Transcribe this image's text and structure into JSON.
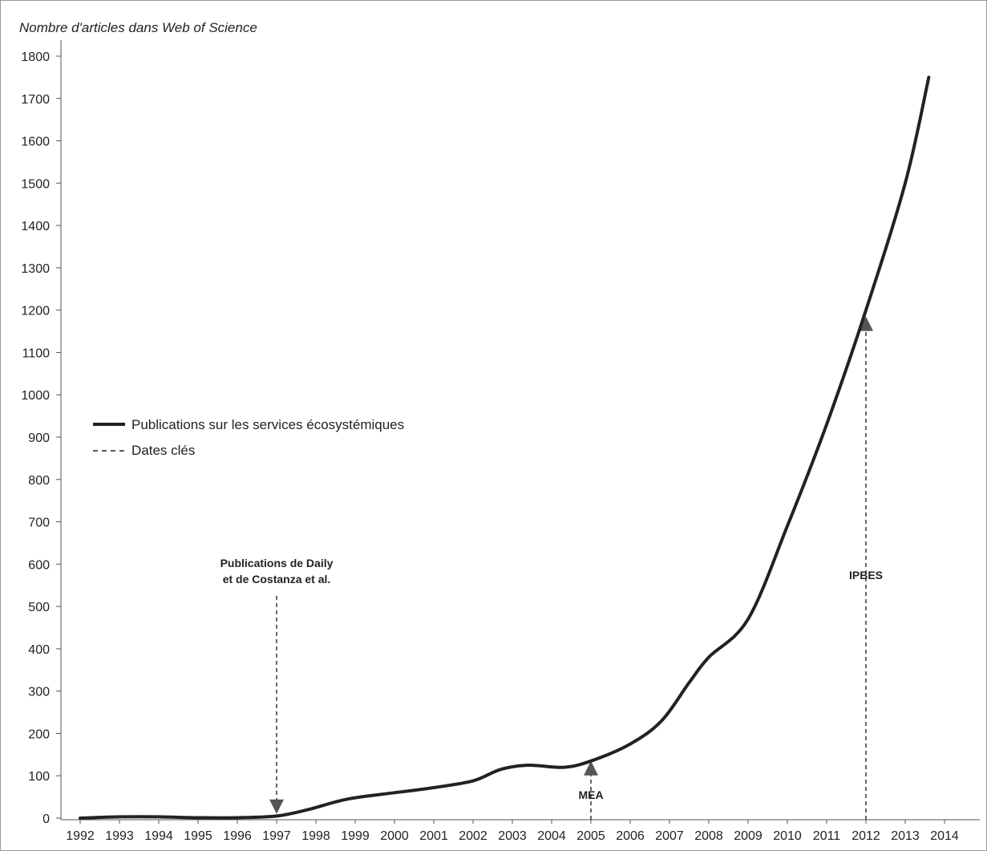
{
  "chart_data": {
    "type": "line",
    "ylabel": "Nombre d'articles dans Web of Science",
    "xlabel": "",
    "ylim": [
      0,
      1800
    ],
    "xlim": [
      1992,
      2014
    ],
    "yticks": [
      0,
      100,
      200,
      300,
      400,
      500,
      600,
      700,
      800,
      900,
      1000,
      1100,
      1200,
      1300,
      1400,
      1500,
      1600,
      1700,
      1800
    ],
    "xticks": [
      "1992",
      "1993",
      "1994",
      "1995",
      "1996",
      "1997",
      "1998",
      "1999",
      "2000",
      "2001",
      "2002",
      "2003",
      "2004",
      "2005",
      "2006",
      "2007",
      "2008",
      "2009",
      "2010",
      "2011",
      "2012",
      "2013",
      "2014"
    ],
    "grid": false,
    "legend_position": "center-left",
    "legend": [
      {
        "label": "Publications sur les services écosystémiques",
        "style": "solid"
      },
      {
        "label": "Dates clés",
        "style": "dashed"
      }
    ],
    "series": [
      {
        "name": "Publications sur les services écosystémiques",
        "color": "#222222",
        "points": [
          [
            1992,
            0
          ],
          [
            1993,
            3
          ],
          [
            1994,
            3
          ],
          [
            1995,
            1
          ],
          [
            1996,
            1
          ],
          [
            1997,
            5
          ],
          [
            1997.8,
            20
          ],
          [
            1998.8,
            45
          ],
          [
            2000,
            60
          ],
          [
            2001,
            72
          ],
          [
            2002,
            88
          ],
          [
            2002.7,
            115
          ],
          [
            2003.4,
            125
          ],
          [
            2004.3,
            120
          ],
          [
            2005,
            135
          ],
          [
            2006,
            175
          ],
          [
            2006.8,
            230
          ],
          [
            2007.5,
            320
          ],
          [
            2008,
            380
          ],
          [
            2009,
            470
          ],
          [
            2010,
            690
          ],
          [
            2011,
            930
          ],
          [
            2012,
            1200
          ],
          [
            2013,
            1500
          ],
          [
            2013.6,
            1750
          ]
        ]
      }
    ],
    "annotations": [
      {
        "lines": [
          "Publications de Daily",
          "et de Costanza et al."
        ],
        "x": 1997,
        "y_from": 525,
        "y_to": 10,
        "direction": "down"
      },
      {
        "lines": [
          "MEA"
        ],
        "x": 2005,
        "y_from": 0,
        "y_to": 135,
        "direction": "up"
      },
      {
        "lines": [
          "IPBES"
        ],
        "x": 2012,
        "y_from": 0,
        "y_to": 1185,
        "direction": "up"
      }
    ]
  }
}
